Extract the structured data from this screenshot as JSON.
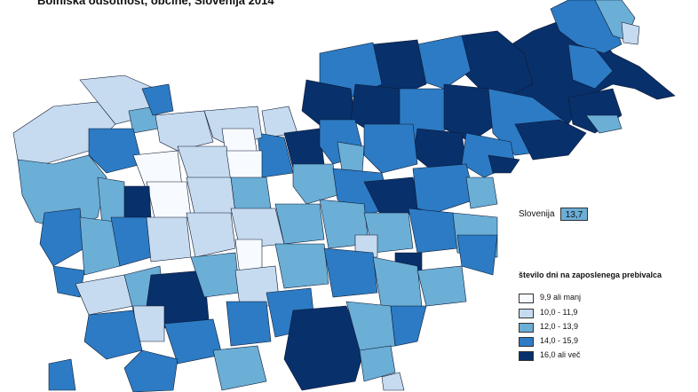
{
  "title": "Bolniška odsotnost, občine, Slovenija 2014",
  "country_summary": {
    "label": "Slovenija",
    "value": "13,7",
    "color": "#6baed6"
  },
  "legend": {
    "title": "število dni na zaposlenega prebivalca",
    "classes": [
      {
        "label": "9,9 ali manj",
        "color": "#f7fbff"
      },
      {
        "label": "10,0 - 11,9",
        "color": "#c6dbef"
      },
      {
        "label": "12,0 - 13,9",
        "color": "#6baed6"
      },
      {
        "label": "14,0 - 15,9",
        "color": "#2c7bc4"
      },
      {
        "label": "16,0 ali več",
        "color": "#08306b"
      }
    ]
  }
}
